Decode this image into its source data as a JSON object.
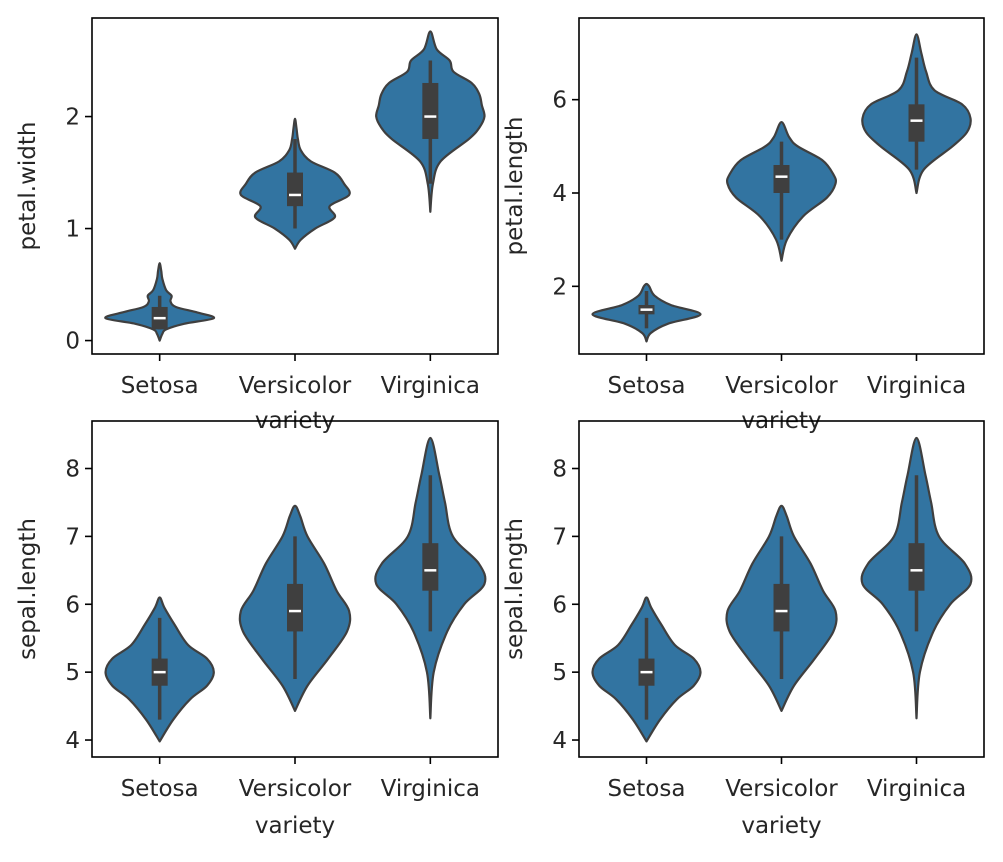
{
  "chart_data": [
    {
      "type": "violin",
      "xlabel": "variety",
      "ylabel": "petal.width",
      "categories": [
        "Setosa",
        "Versicolor",
        "Virginica"
      ],
      "ylim": [
        -0.12,
        2.88
      ],
      "yticks": [
        0,
        1,
        2
      ],
      "grid": false,
      "color": "#3274a1",
      "violins": [
        {
          "category": "Setosa",
          "profile": [
            [
              0.0,
              0.0
            ],
            [
              0.06,
              0.05
            ],
            [
              0.1,
              0.12
            ],
            [
              0.15,
              0.45
            ],
            [
              0.2,
              1.0
            ],
            [
              0.25,
              0.7
            ],
            [
              0.3,
              0.3
            ],
            [
              0.35,
              0.2
            ],
            [
              0.4,
              0.22
            ],
            [
              0.45,
              0.12
            ],
            [
              0.55,
              0.05
            ],
            [
              0.62,
              0.03
            ],
            [
              0.69,
              0.0
            ]
          ],
          "q1": 0.1,
          "median": 0.2,
          "q3": 0.3,
          "whisker_low": 0.1,
          "whisker_high": 0.4
        },
        {
          "category": "Versicolor",
          "profile": [
            [
              0.82,
              0.0
            ],
            [
              0.9,
              0.08
            ],
            [
              1.0,
              0.28
            ],
            [
              1.1,
              0.55
            ],
            [
              1.2,
              0.48
            ],
            [
              1.3,
              0.75
            ],
            [
              1.4,
              0.68
            ],
            [
              1.5,
              0.55
            ],
            [
              1.6,
              0.22
            ],
            [
              1.7,
              0.08
            ],
            [
              1.8,
              0.04
            ],
            [
              1.9,
              0.02
            ],
            [
              1.98,
              0.0
            ]
          ],
          "q1": 1.2,
          "median": 1.3,
          "q3": 1.5,
          "whisker_low": 1.0,
          "whisker_high": 1.8
        },
        {
          "category": "Virginica",
          "profile": [
            [
              1.15,
              0.0
            ],
            [
              1.4,
              0.02
            ],
            [
              1.6,
              0.08
            ],
            [
              1.8,
              0.3
            ],
            [
              1.9,
              0.38
            ],
            [
              2.0,
              0.42
            ],
            [
              2.1,
              0.4
            ],
            [
              2.2,
              0.38
            ],
            [
              2.3,
              0.32
            ],
            [
              2.4,
              0.18
            ],
            [
              2.5,
              0.15
            ],
            [
              2.6,
              0.05
            ],
            [
              2.76,
              0.0
            ]
          ],
          "q1": 1.8,
          "median": 2.0,
          "q3": 2.3,
          "whisker_low": 1.4,
          "whisker_high": 2.5
        }
      ]
    },
    {
      "type": "violin",
      "xlabel": "variety",
      "ylabel": "petal.length",
      "categories": [
        "Setosa",
        "Versicolor",
        "Virginica"
      ],
      "ylim": [
        0.55,
        7.75
      ],
      "yticks": [
        2,
        4,
        6
      ],
      "grid": false,
      "color": "#3274a1",
      "violins": [
        {
          "category": "Setosa",
          "profile": [
            [
              0.82,
              0.0
            ],
            [
              1.0,
              0.08
            ],
            [
              1.2,
              0.4
            ],
            [
              1.4,
              1.0
            ],
            [
              1.6,
              0.45
            ],
            [
              1.8,
              0.15
            ],
            [
              2.0,
              0.05
            ],
            [
              2.05,
              0.0
            ]
          ],
          "q1": 1.4,
          "median": 1.5,
          "q3": 1.6,
          "whisker_low": 1.1,
          "whisker_high": 1.9
        },
        {
          "category": "Versicolor",
          "profile": [
            [
              2.55,
              0.0
            ],
            [
              3.0,
              0.05
            ],
            [
              3.5,
              0.2
            ],
            [
              3.9,
              0.42
            ],
            [
              4.2,
              0.5
            ],
            [
              4.4,
              0.48
            ],
            [
              4.7,
              0.38
            ],
            [
              5.0,
              0.15
            ],
            [
              5.2,
              0.07
            ],
            [
              5.52,
              0.0
            ]
          ],
          "q1": 4.0,
          "median": 4.35,
          "q3": 4.6,
          "whisker_low": 3.0,
          "whisker_high": 5.1
        },
        {
          "category": "Virginica",
          "profile": [
            [
              4.0,
              0.0
            ],
            [
              4.5,
              0.06
            ],
            [
              5.0,
              0.3
            ],
            [
              5.3,
              0.42
            ],
            [
              5.6,
              0.45
            ],
            [
              5.9,
              0.38
            ],
            [
              6.2,
              0.15
            ],
            [
              6.6,
              0.08
            ],
            [
              7.0,
              0.04
            ],
            [
              7.4,
              0.0
            ]
          ],
          "q1": 5.1,
          "median": 5.55,
          "q3": 5.9,
          "whisker_low": 4.5,
          "whisker_high": 6.9
        }
      ]
    },
    {
      "type": "violin",
      "xlabel": "variety",
      "ylabel": "sepal.length",
      "categories": [
        "Setosa",
        "Versicolor",
        "Virginica"
      ],
      "ylim": [
        3.75,
        8.7
      ],
      "yticks": [
        4,
        5,
        6,
        7,
        8
      ],
      "grid": false,
      "color": "#3274a1",
      "violins": [
        {
          "category": "Setosa",
          "profile": [
            [
              3.98,
              0.0
            ],
            [
              4.3,
              0.2
            ],
            [
              4.6,
              0.45
            ],
            [
              4.8,
              0.7
            ],
            [
              5.0,
              0.8
            ],
            [
              5.2,
              0.7
            ],
            [
              5.4,
              0.42
            ],
            [
              5.7,
              0.22
            ],
            [
              5.95,
              0.07
            ],
            [
              6.1,
              0.0
            ]
          ],
          "q1": 4.8,
          "median": 5.0,
          "q3": 5.2,
          "whisker_low": 4.3,
          "whisker_high": 5.8
        },
        {
          "category": "Versicolor",
          "profile": [
            [
              4.43,
              0.0
            ],
            [
              4.8,
              0.12
            ],
            [
              5.2,
              0.32
            ],
            [
              5.6,
              0.5
            ],
            [
              5.9,
              0.52
            ],
            [
              6.2,
              0.4
            ],
            [
              6.6,
              0.28
            ],
            [
              7.0,
              0.12
            ],
            [
              7.3,
              0.05
            ],
            [
              7.45,
              0.0
            ]
          ],
          "q1": 5.6,
          "median": 5.9,
          "q3": 6.3,
          "whisker_low": 4.9,
          "whisker_high": 7.0
        },
        {
          "category": "Virginica",
          "profile": [
            [
              4.32,
              0.0
            ],
            [
              5.0,
              0.03
            ],
            [
              5.6,
              0.15
            ],
            [
              6.0,
              0.3
            ],
            [
              6.3,
              0.48
            ],
            [
              6.6,
              0.43
            ],
            [
              7.0,
              0.2
            ],
            [
              7.5,
              0.13
            ],
            [
              7.9,
              0.08
            ],
            [
              8.45,
              0.0
            ]
          ],
          "q1": 6.2,
          "median": 6.5,
          "q3": 6.9,
          "whisker_low": 5.6,
          "whisker_high": 7.9
        }
      ]
    },
    {
      "type": "violin",
      "xlabel": "variety",
      "ylabel": "sepal.length",
      "categories": [
        "Setosa",
        "Versicolor",
        "Virginica"
      ],
      "ylim": [
        3.75,
        8.7
      ],
      "yticks": [
        4,
        5,
        6,
        7,
        8
      ],
      "grid": false,
      "color": "#3274a1",
      "violins": [
        {
          "category": "Setosa",
          "profile": [
            [
              3.98,
              0.0
            ],
            [
              4.3,
              0.2
            ],
            [
              4.6,
              0.45
            ],
            [
              4.8,
              0.7
            ],
            [
              5.0,
              0.8
            ],
            [
              5.2,
              0.7
            ],
            [
              5.4,
              0.42
            ],
            [
              5.7,
              0.22
            ],
            [
              5.95,
              0.07
            ],
            [
              6.1,
              0.0
            ]
          ],
          "q1": 4.8,
          "median": 5.0,
          "q3": 5.2,
          "whisker_low": 4.3,
          "whisker_high": 5.8
        },
        {
          "category": "Versicolor",
          "profile": [
            [
              4.43,
              0.0
            ],
            [
              4.8,
              0.12
            ],
            [
              5.2,
              0.32
            ],
            [
              5.6,
              0.5
            ],
            [
              5.9,
              0.52
            ],
            [
              6.2,
              0.4
            ],
            [
              6.6,
              0.28
            ],
            [
              7.0,
              0.12
            ],
            [
              7.3,
              0.05
            ],
            [
              7.45,
              0.0
            ]
          ],
          "q1": 5.6,
          "median": 5.9,
          "q3": 6.3,
          "whisker_low": 4.9,
          "whisker_high": 7.0
        },
        {
          "category": "Virginica",
          "profile": [
            [
              4.32,
              0.0
            ],
            [
              5.0,
              0.03
            ],
            [
              5.6,
              0.15
            ],
            [
              6.0,
              0.3
            ],
            [
              6.3,
              0.48
            ],
            [
              6.6,
              0.43
            ],
            [
              7.0,
              0.2
            ],
            [
              7.5,
              0.13
            ],
            [
              7.9,
              0.08
            ],
            [
              8.45,
              0.0
            ]
          ],
          "q1": 6.2,
          "median": 6.5,
          "q3": 6.9,
          "whisker_low": 5.6,
          "whisker_high": 7.9
        }
      ]
    }
  ]
}
